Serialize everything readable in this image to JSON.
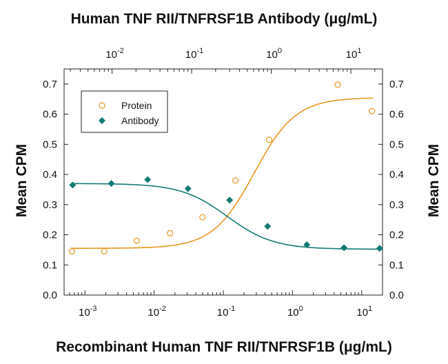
{
  "chart_data": {
    "type": "scatter",
    "title": "Human TNF RII/TNFRSF1B Antibody (μg/mL)",
    "xlabel": "Recombinant Human TNF RII/TNFRSF1B (μg/mL)",
    "ylabel": "Mean CPM",
    "ylabel_right": "Mean CPM",
    "x_scale": "log",
    "x_bottom_range": [
      0.0005,
      20
    ],
    "x_top_range": [
      0.0025,
      25
    ],
    "ylim": [
      0,
      0.75
    ],
    "y_ticks": [
      "0.0",
      "0.1",
      "0.2",
      "0.3",
      "0.4",
      "0.5",
      "0.6",
      "0.7"
    ],
    "x_bottom_ticks": [
      {
        "base": "10",
        "exp": "-3"
      },
      {
        "base": "10",
        "exp": "-2"
      },
      {
        "base": "10",
        "exp": "-1"
      },
      {
        "base": "10",
        "exp": "0"
      },
      {
        "base": "10",
        "exp": "1"
      }
    ],
    "x_top_ticks": [
      {
        "base": "10",
        "exp": "-2"
      },
      {
        "base": "10",
        "exp": "-1"
      },
      {
        "base": "10",
        "exp": "0"
      },
      {
        "base": "10",
        "exp": "1"
      }
    ],
    "legend_position": "top-left",
    "series": [
      {
        "name": "Protein",
        "axis": "bottom",
        "marker": "open-circle",
        "color": "#e8961e",
        "x": [
          0.00065,
          0.0019,
          0.0056,
          0.017,
          0.05,
          0.15,
          0.46,
          4.5,
          14
        ],
        "y": [
          0.145,
          0.145,
          0.18,
          0.205,
          0.258,
          0.38,
          0.515,
          0.698,
          0.61
        ],
        "fit": {
          "bottom": 0.155,
          "top": 0.655,
          "ec50": 0.28,
          "hill": 1.45
        }
      },
      {
        "name": "Antibody",
        "axis": "top",
        "marker": "filled-diamond",
        "color": "#127a73",
        "x": [
          0.0032,
          0.0098,
          0.028,
          0.09,
          0.3,
          0.9,
          2.8,
          8.2,
          23
        ],
        "y": [
          0.365,
          0.37,
          0.383,
          0.353,
          0.315,
          0.228,
          0.167,
          0.157,
          0.155
        ],
        "fit": {
          "bottom": 0.152,
          "top": 0.37,
          "ec50": 0.28,
          "hill": -1.5
        }
      }
    ]
  }
}
